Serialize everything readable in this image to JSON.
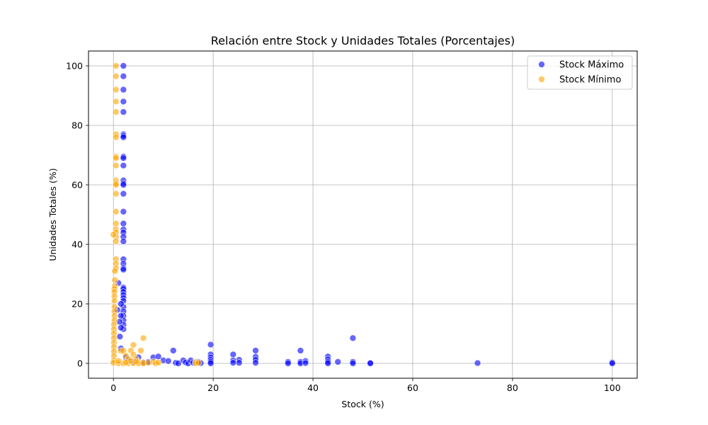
{
  "chart_data": {
    "type": "scatter",
    "title": "Relación entre Stock y Unidades Totales (Porcentajes)",
    "xlabel": "Stock (%)",
    "ylabel": "Unidades Totales (%)",
    "xlim": [
      -5,
      105
    ],
    "ylim": [
      -5,
      105
    ],
    "x_ticks": [
      0,
      20,
      40,
      60,
      80,
      100
    ],
    "y_ticks": [
      0,
      20,
      40,
      60,
      80,
      100
    ],
    "grid": true,
    "legend_position": "top-right",
    "series": [
      {
        "name": "Stock Máximo",
        "color": "#0000ff",
        "points": [
          [
            2,
            100
          ],
          [
            2,
            96.5
          ],
          [
            2,
            92
          ],
          [
            2,
            88
          ],
          [
            2,
            84.5
          ],
          [
            2,
            77
          ],
          [
            2,
            76.5
          ],
          [
            2,
            76
          ],
          [
            2,
            69.5
          ],
          [
            2,
            69
          ],
          [
            2,
            66.5
          ],
          [
            2,
            61.5
          ],
          [
            2,
            60.5
          ],
          [
            2,
            60
          ],
          [
            2,
            57
          ],
          [
            2,
            51
          ],
          [
            2,
            47
          ],
          [
            2,
            45
          ],
          [
            2,
            44
          ],
          [
            2,
            42.5
          ],
          [
            2,
            41
          ],
          [
            2,
            35
          ],
          [
            2,
            33.5
          ],
          [
            2,
            32
          ],
          [
            2,
            31.5
          ],
          [
            2,
            25.5
          ],
          [
            2,
            25
          ],
          [
            2,
            24
          ],
          [
            2,
            23
          ],
          [
            2,
            22
          ],
          [
            2,
            21
          ],
          [
            2,
            19
          ],
          [
            2,
            17.5
          ],
          [
            2,
            16
          ],
          [
            2,
            14.5
          ],
          [
            2,
            13
          ],
          [
            2,
            11.5
          ],
          [
            1.5,
            20
          ],
          [
            1.5,
            16
          ],
          [
            1.5,
            12
          ],
          [
            1.2,
            14
          ],
          [
            1.3,
            9
          ],
          [
            1.5,
            5
          ],
          [
            1,
            27
          ],
          [
            0.8,
            18
          ],
          [
            2.5,
            2
          ],
          [
            3,
            1
          ],
          [
            4,
            0.5
          ],
          [
            5,
            2
          ],
          [
            6,
            0.3
          ],
          [
            7,
            0.5
          ],
          [
            8,
            2
          ],
          [
            9,
            2.3
          ],
          [
            10,
            1
          ],
          [
            11,
            0.8
          ],
          [
            12,
            4.3
          ],
          [
            12.5,
            0.2
          ],
          [
            13,
            0
          ],
          [
            14,
            1
          ],
          [
            14.5,
            0.3
          ],
          [
            15,
            0
          ],
          [
            15.5,
            1
          ],
          [
            16,
            0.2
          ],
          [
            17,
            0.5
          ],
          [
            17.5,
            0.1
          ],
          [
            19.5,
            6.3
          ],
          [
            19.5,
            3
          ],
          [
            19.5,
            2
          ],
          [
            19.5,
            1.2
          ],
          [
            19.5,
            0.5
          ],
          [
            19.5,
            0
          ],
          [
            24,
            3
          ],
          [
            24,
            1
          ],
          [
            24,
            0.2
          ],
          [
            25.2,
            1.2
          ],
          [
            25.2,
            0.2
          ],
          [
            28.5,
            4.3
          ],
          [
            28.5,
            2.2
          ],
          [
            28.5,
            1.2
          ],
          [
            28.5,
            0.2
          ],
          [
            35,
            0.5
          ],
          [
            35,
            0
          ],
          [
            37.5,
            4.3
          ],
          [
            37.5,
            0.5
          ],
          [
            37.5,
            0
          ],
          [
            38.5,
            0.8
          ],
          [
            38.5,
            0.1
          ],
          [
            43,
            2.3
          ],
          [
            43,
            1.3
          ],
          [
            43,
            0.5
          ],
          [
            43,
            0
          ],
          [
            45,
            0.5
          ],
          [
            48,
            8.5
          ],
          [
            48,
            0.5
          ],
          [
            48,
            0
          ],
          [
            51.5,
            0.2
          ],
          [
            51.5,
            0
          ],
          [
            73,
            0.1
          ],
          [
            100,
            0.3
          ],
          [
            100,
            0
          ]
        ]
      },
      {
        "name": "Stock Mínimo",
        "color": "#ffa500",
        "points": [
          [
            0.5,
            100
          ],
          [
            0.5,
            96.5
          ],
          [
            0.5,
            92
          ],
          [
            0.5,
            88
          ],
          [
            0.5,
            84.5
          ],
          [
            0.5,
            77
          ],
          [
            0.5,
            76
          ],
          [
            0.5,
            69.5
          ],
          [
            0.5,
            69
          ],
          [
            0.5,
            66.5
          ],
          [
            0.5,
            61.5
          ],
          [
            0.5,
            60.5
          ],
          [
            0.5,
            60
          ],
          [
            0.5,
            57
          ],
          [
            0.5,
            51
          ],
          [
            0.5,
            47
          ],
          [
            0.5,
            45
          ],
          [
            0.5,
            44
          ],
          [
            0.5,
            42.5
          ],
          [
            0.5,
            41
          ],
          [
            0.5,
            35
          ],
          [
            0.5,
            33.5
          ],
          [
            0.5,
            32
          ],
          [
            0.3,
            31
          ],
          [
            0.3,
            28
          ],
          [
            0.3,
            26
          ],
          [
            0.2,
            25
          ],
          [
            0.2,
            24
          ],
          [
            0.2,
            22.5
          ],
          [
            0.2,
            21
          ],
          [
            0.2,
            19
          ],
          [
            0.2,
            17.5
          ],
          [
            0.2,
            16
          ],
          [
            0.2,
            14.5
          ],
          [
            0.1,
            13
          ],
          [
            0.1,
            11.5
          ],
          [
            0.1,
            10
          ],
          [
            0.1,
            8.5
          ],
          [
            0.1,
            7
          ],
          [
            0.1,
            5.5
          ],
          [
            0.1,
            4
          ],
          [
            0.1,
            2.5
          ],
          [
            0.1,
            1
          ],
          [
            0,
            43.3
          ],
          [
            0,
            0.2
          ],
          [
            1.5,
            4.2
          ],
          [
            2,
            4.2
          ],
          [
            2.5,
            2.5
          ],
          [
            3,
            1.5
          ],
          [
            3.5,
            4.3
          ],
          [
            4,
            3
          ],
          [
            4,
            6.2
          ],
          [
            4.5,
            1.5
          ],
          [
            5,
            0.5
          ],
          [
            5.5,
            4.3
          ],
          [
            6,
            8.5
          ],
          [
            6,
            0.3
          ],
          [
            1,
            0
          ],
          [
            2,
            0
          ],
          [
            3,
            0
          ],
          [
            4,
            0
          ],
          [
            5,
            0
          ],
          [
            6,
            0
          ],
          [
            7,
            0.2
          ],
          [
            8,
            0.5
          ],
          [
            8.5,
            0
          ],
          [
            9,
            0.3
          ],
          [
            16.5,
            0.5
          ],
          [
            16.5,
            0
          ],
          [
            17,
            0.2
          ],
          [
            1,
            0.8
          ],
          [
            2.5,
            0.3
          ],
          [
            3.5,
            0.8
          ],
          [
            4.5,
            0.6
          ]
        ]
      }
    ]
  }
}
